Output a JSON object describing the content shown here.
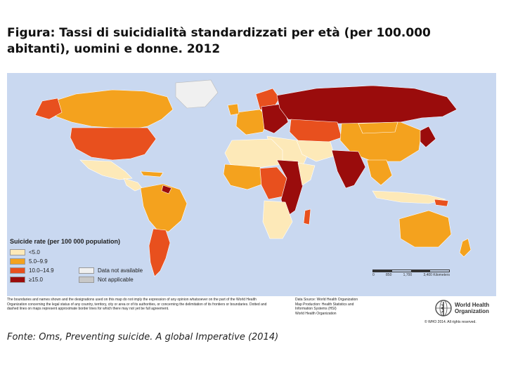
{
  "title": "Figura: Tassi di suicidialità standardizzati per età (per 100.000 abitanti), uomini e donne. 2012",
  "map": {
    "legend_title": "Suicide rate (per 100 000 population)",
    "legend": [
      {
        "label": "<5.0",
        "color": "#fde9b8"
      },
      {
        "label": "5.0–9.9",
        "color": "#f4a21e"
      },
      {
        "label": "10.0–14.9",
        "color": "#e8501e"
      },
      {
        "label": "≥15.0",
        "color": "#9a0c0c"
      },
      {
        "label": "Data not available",
        "color": "#f0f0f0"
      },
      {
        "label": "Not applicable",
        "color": "#c8c8c8"
      }
    ],
    "ocean_color": "#c9d8f0",
    "scale_labels": [
      "0",
      "850",
      "1,700",
      "3,400 Kilometers"
    ],
    "disclaimer": "The boundaries and names shown and the designations used on this map do not imply the expression of any opinion whatsoever on the part of the World Health Organization concerning the legal status of any country, territory, city or area or of its authorities, or concerning the delimitation of its frontiers or boundaries. Dotted and dashed lines on maps represent approximate border lines for which there may not yet be full agreement.",
    "credits": [
      "Data Source: World Health Organization",
      "Map Production: Health Statistics and",
      "Information Systems (HSI)",
      "World Health Organization"
    ],
    "who_name": [
      "World Health",
      "Organization"
    ],
    "copyright": "© WHO 2014. All rights reserved."
  },
  "source": "Fonte: Oms, Preventing suicide. A global Imperative (2014)"
}
